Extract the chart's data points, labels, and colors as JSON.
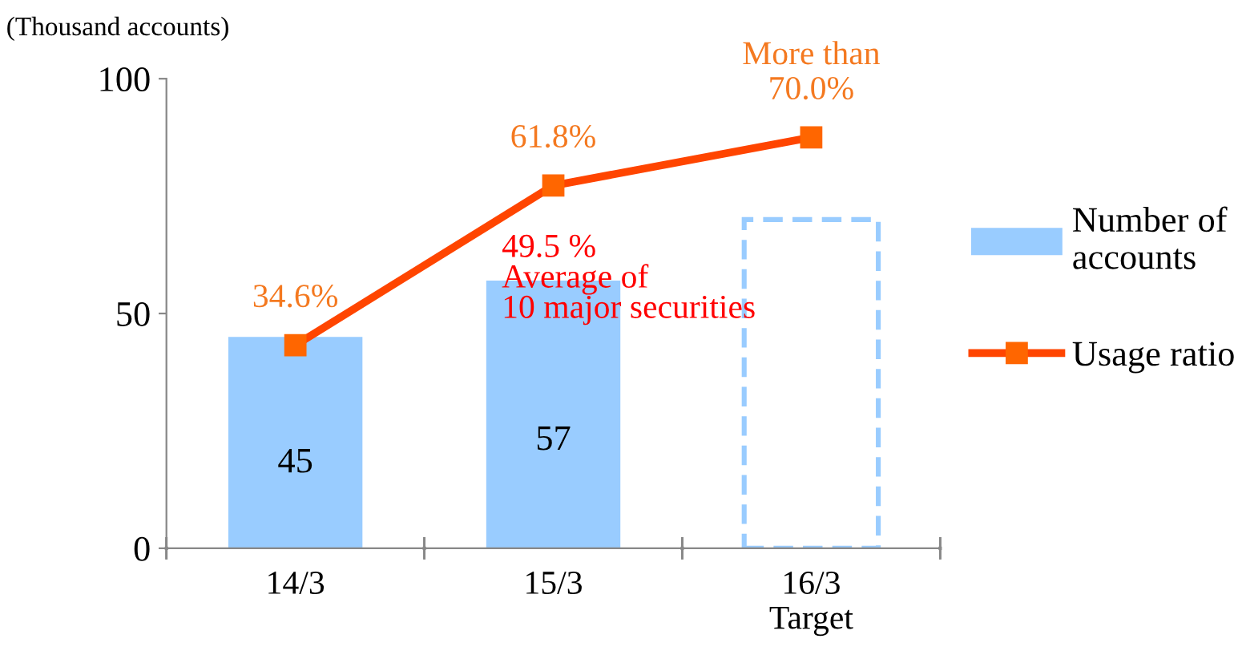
{
  "chart_data": {
    "type": "bar",
    "ylabel": "(Thousand accounts)",
    "categories": [
      "14/3",
      "15/3",
      "16/3\nTarget"
    ],
    "series": [
      {
        "name": "Number of accounts",
        "color": "#99ccff",
        "values": [
          45,
          57,
          null
        ],
        "value_labels": [
          "45",
          "57",
          null
        ]
      },
      {
        "color": "#99ccff",
        "line_style": "dashed",
        "values": [
          null,
          null,
          70
        ]
      },
      {
        "name": "Usage ratio",
        "type": "line",
        "axis": "y2",
        "color": "#ff4500",
        "marker": "square",
        "values": [
          34.6,
          61.8,
          70.0
        ],
        "value_labels": [
          "34.6%",
          "61.8%",
          "More than\n70.0%"
        ]
      }
    ],
    "ylim": [
      0,
      100
    ],
    "yticks": [
      0,
      50,
      100
    ],
    "y2lim": [
      0,
      80
    ],
    "tick_labels": "xy",
    "annotations": [
      "49.5 %\nAverage of\n10 major securities"
    ],
    "grid": false,
    "legend": "right"
  }
}
